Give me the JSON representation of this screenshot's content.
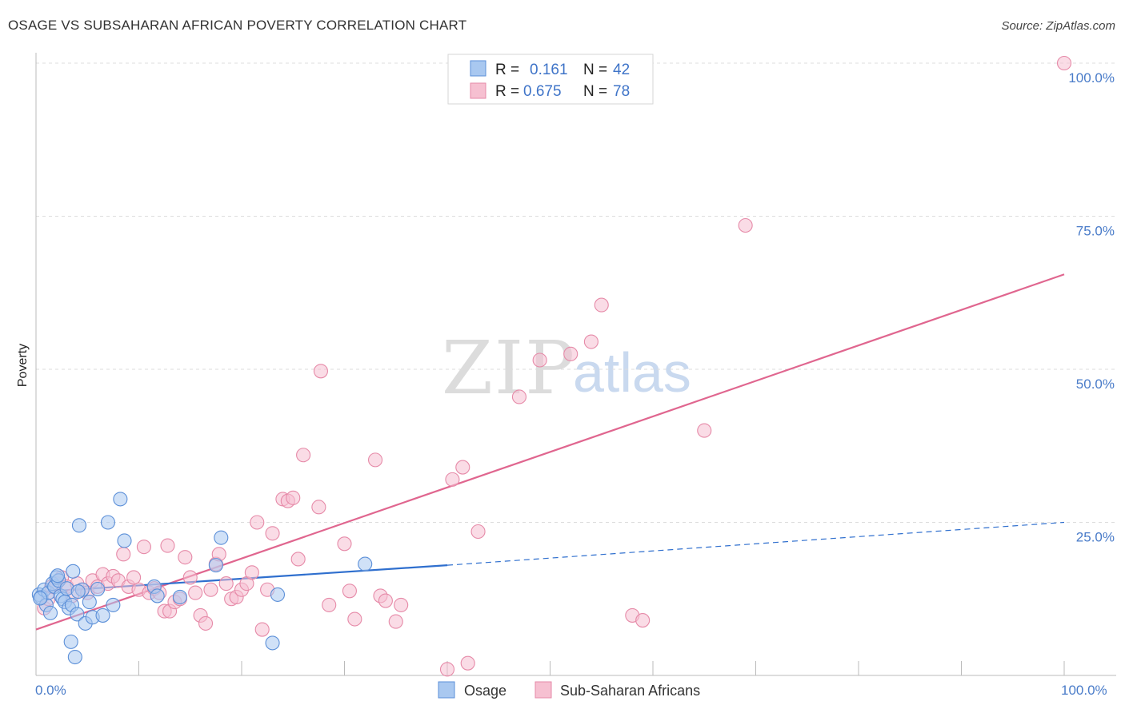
{
  "header": {
    "title": "OSAGE VS SUBSAHARAN AFRICAN POVERTY CORRELATION CHART",
    "source": "Source: ZipAtlas.com"
  },
  "watermark": {
    "part1": "ZIP",
    "part2": "atlas"
  },
  "legend_top": {
    "rows": [
      {
        "r_label": "R =",
        "r_value": "0.161",
        "n_label": "N =",
        "n_value": "42"
      },
      {
        "r_label": "R =",
        "r_value": "0.675",
        "n_label": "N =",
        "n_value": "78"
      }
    ]
  },
  "legend_bottom": {
    "items": [
      "Osage",
      "Sub-Saharan Africans"
    ]
  },
  "colors": {
    "osage_fill": "#a9c8f0",
    "osage_stroke": "#5b8fd8",
    "osage_line": "#2f6fce",
    "ssa_fill": "#f6c0d1",
    "ssa_stroke": "#e68aa8",
    "ssa_line": "#e0668f",
    "tick_text": "#4a7cc9",
    "grid": "#dddddd"
  },
  "chart_data": {
    "type": "scatter",
    "title": "OSAGE VS SUBSAHARAN AFRICAN POVERTY CORRELATION CHART",
    "xlabel": "",
    "ylabel": "Poverty",
    "xlim": [
      0,
      100
    ],
    "ylim": [
      0,
      100
    ],
    "x_tick_labels": [
      "0.0%",
      "100.0%"
    ],
    "y_tick_labels": [
      "25.0%",
      "50.0%",
      "75.0%",
      "100.0%"
    ],
    "y_ticks": [
      25,
      50,
      75,
      100
    ],
    "grid": true,
    "legend_position": "top-center",
    "series": [
      {
        "name": "Osage",
        "r": 0.161,
        "n": 42,
        "trend": {
          "x0": 0,
          "y0": 13.6,
          "x1": 40,
          "y1": 18.0,
          "dashed_to_x": 100,
          "dashed_to_y": 25.0
        },
        "points": [
          [
            0.3,
            13.2
          ],
          [
            0.5,
            12.8
          ],
          [
            0.8,
            14.0
          ],
          [
            1.0,
            11.5
          ],
          [
            1.2,
            13.5
          ],
          [
            1.4,
            10.2
          ],
          [
            1.6,
            15.0
          ],
          [
            1.8,
            14.5
          ],
          [
            2.0,
            16.0
          ],
          [
            2.2,
            15.5
          ],
          [
            2.4,
            13.0
          ],
          [
            2.6,
            12.5
          ],
          [
            2.8,
            12.0
          ],
          [
            3.0,
            14.2
          ],
          [
            3.2,
            11.0
          ],
          [
            3.4,
            5.5
          ],
          [
            3.5,
            11.5
          ],
          [
            3.6,
            17.0
          ],
          [
            3.8,
            3.0
          ],
          [
            4.0,
            10.0
          ],
          [
            4.2,
            24.5
          ],
          [
            4.5,
            14.0
          ],
          [
            4.8,
            8.5
          ],
          [
            5.2,
            12.0
          ],
          [
            5.5,
            9.5
          ],
          [
            6.5,
            9.8
          ],
          [
            7.0,
            25.0
          ],
          [
            7.5,
            11.5
          ],
          [
            8.2,
            28.8
          ],
          [
            8.6,
            22.0
          ],
          [
            11.5,
            14.5
          ],
          [
            11.8,
            13.0
          ],
          [
            14.0,
            12.8
          ],
          [
            17.5,
            18.0
          ],
          [
            18.0,
            22.5
          ],
          [
            23.0,
            5.3
          ],
          [
            23.5,
            13.2
          ],
          [
            32.0,
            18.2
          ],
          [
            0.4,
            12.6
          ],
          [
            2.1,
            16.3
          ],
          [
            4.1,
            13.7
          ],
          [
            6.0,
            14.1
          ]
        ]
      },
      {
        "name": "Sub-Saharan Africans",
        "r": 0.675,
        "n": 78,
        "trend": {
          "x0": 0,
          "y0": 7.5,
          "x1": 100,
          "y1": 65.5
        },
        "points": [
          [
            0.8,
            11.0
          ],
          [
            1.2,
            12.5
          ],
          [
            1.5,
            14.5
          ],
          [
            2.0,
            15.0
          ],
          [
            2.5,
            16.0
          ],
          [
            3.0,
            14.5
          ],
          [
            3.5,
            13.0
          ],
          [
            4.0,
            15.0
          ],
          [
            4.5,
            14.0
          ],
          [
            5.0,
            13.5
          ],
          [
            5.5,
            15.5
          ],
          [
            6.0,
            14.5
          ],
          [
            6.5,
            16.5
          ],
          [
            7.0,
            15.0
          ],
          [
            7.5,
            16.2
          ],
          [
            8.0,
            15.5
          ],
          [
            8.5,
            19.8
          ],
          [
            9.0,
            14.5
          ],
          [
            9.5,
            16.0
          ],
          [
            10.0,
            14.0
          ],
          [
            10.5,
            21.0
          ],
          [
            11.0,
            13.5
          ],
          [
            11.5,
            14.2
          ],
          [
            12.0,
            13.5
          ],
          [
            12.5,
            10.5
          ],
          [
            12.8,
            21.2
          ],
          [
            13.0,
            10.5
          ],
          [
            13.5,
            12.0
          ],
          [
            14.0,
            12.5
          ],
          [
            14.5,
            19.3
          ],
          [
            15.0,
            16.0
          ],
          [
            15.5,
            13.5
          ],
          [
            16.0,
            9.8
          ],
          [
            16.5,
            8.5
          ],
          [
            17.0,
            14.0
          ],
          [
            17.5,
            18.2
          ],
          [
            17.8,
            19.8
          ],
          [
            18.5,
            15.0
          ],
          [
            19.0,
            12.5
          ],
          [
            19.5,
            12.8
          ],
          [
            20.0,
            14.0
          ],
          [
            20.5,
            15.0
          ],
          [
            21.0,
            16.8
          ],
          [
            21.5,
            25.0
          ],
          [
            22.0,
            7.5
          ],
          [
            22.5,
            14.0
          ],
          [
            23.0,
            23.2
          ],
          [
            24.0,
            28.8
          ],
          [
            24.5,
            28.5
          ],
          [
            25.0,
            29.0
          ],
          [
            25.5,
            19.0
          ],
          [
            26.0,
            36.0
          ],
          [
            27.5,
            27.5
          ],
          [
            27.7,
            49.7
          ],
          [
            28.5,
            11.5
          ],
          [
            30.0,
            21.5
          ],
          [
            30.5,
            13.8
          ],
          [
            31.0,
            9.2
          ],
          [
            33.0,
            35.2
          ],
          [
            33.5,
            13.0
          ],
          [
            34.0,
            12.2
          ],
          [
            35.0,
            8.8
          ],
          [
            35.5,
            11.5
          ],
          [
            40.5,
            32.0
          ],
          [
            41.5,
            34.0
          ],
          [
            42.0,
            2.0
          ],
          [
            43.0,
            23.5
          ],
          [
            47.0,
            45.5
          ],
          [
            49.0,
            51.5
          ],
          [
            52.0,
            52.5
          ],
          [
            54.0,
            54.5
          ],
          [
            55.0,
            60.5
          ],
          [
            58.0,
            9.8
          ],
          [
            59.0,
            9.0
          ],
          [
            65.0,
            40.0
          ],
          [
            69.0,
            73.5
          ],
          [
            100.0,
            100.0
          ],
          [
            40.0,
            1.0
          ]
        ]
      }
    ]
  }
}
